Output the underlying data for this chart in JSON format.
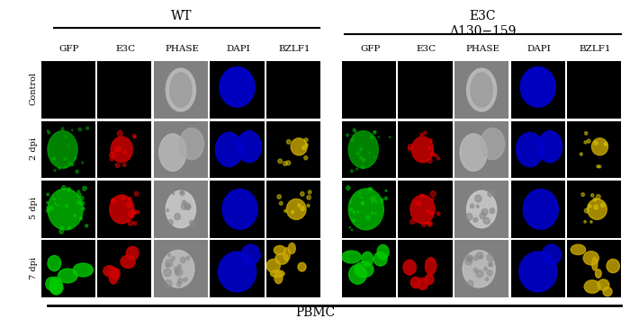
{
  "title_left": "WT",
  "title_right": "E3C\nΔ130−159",
  "col_labels": [
    "GFP",
    "E3C",
    "PHASE",
    "DAPI",
    "BZLF1"
  ],
  "row_labels": [
    "Control",
    "2 dpi",
    "5 dpi",
    "7 dpi"
  ],
  "bottom_label": "PBMC",
  "bg_color": "#000000",
  "white": "#ffffff",
  "cell_colors": {
    "GFP": "#00cc00",
    "E3C": "#cc0000",
    "PHASE": "#aaaaaa",
    "DAPI": "#0000ee",
    "BZLF1": "#ccaa00"
  },
  "figure_width": 7.0,
  "figure_height": 3.64
}
